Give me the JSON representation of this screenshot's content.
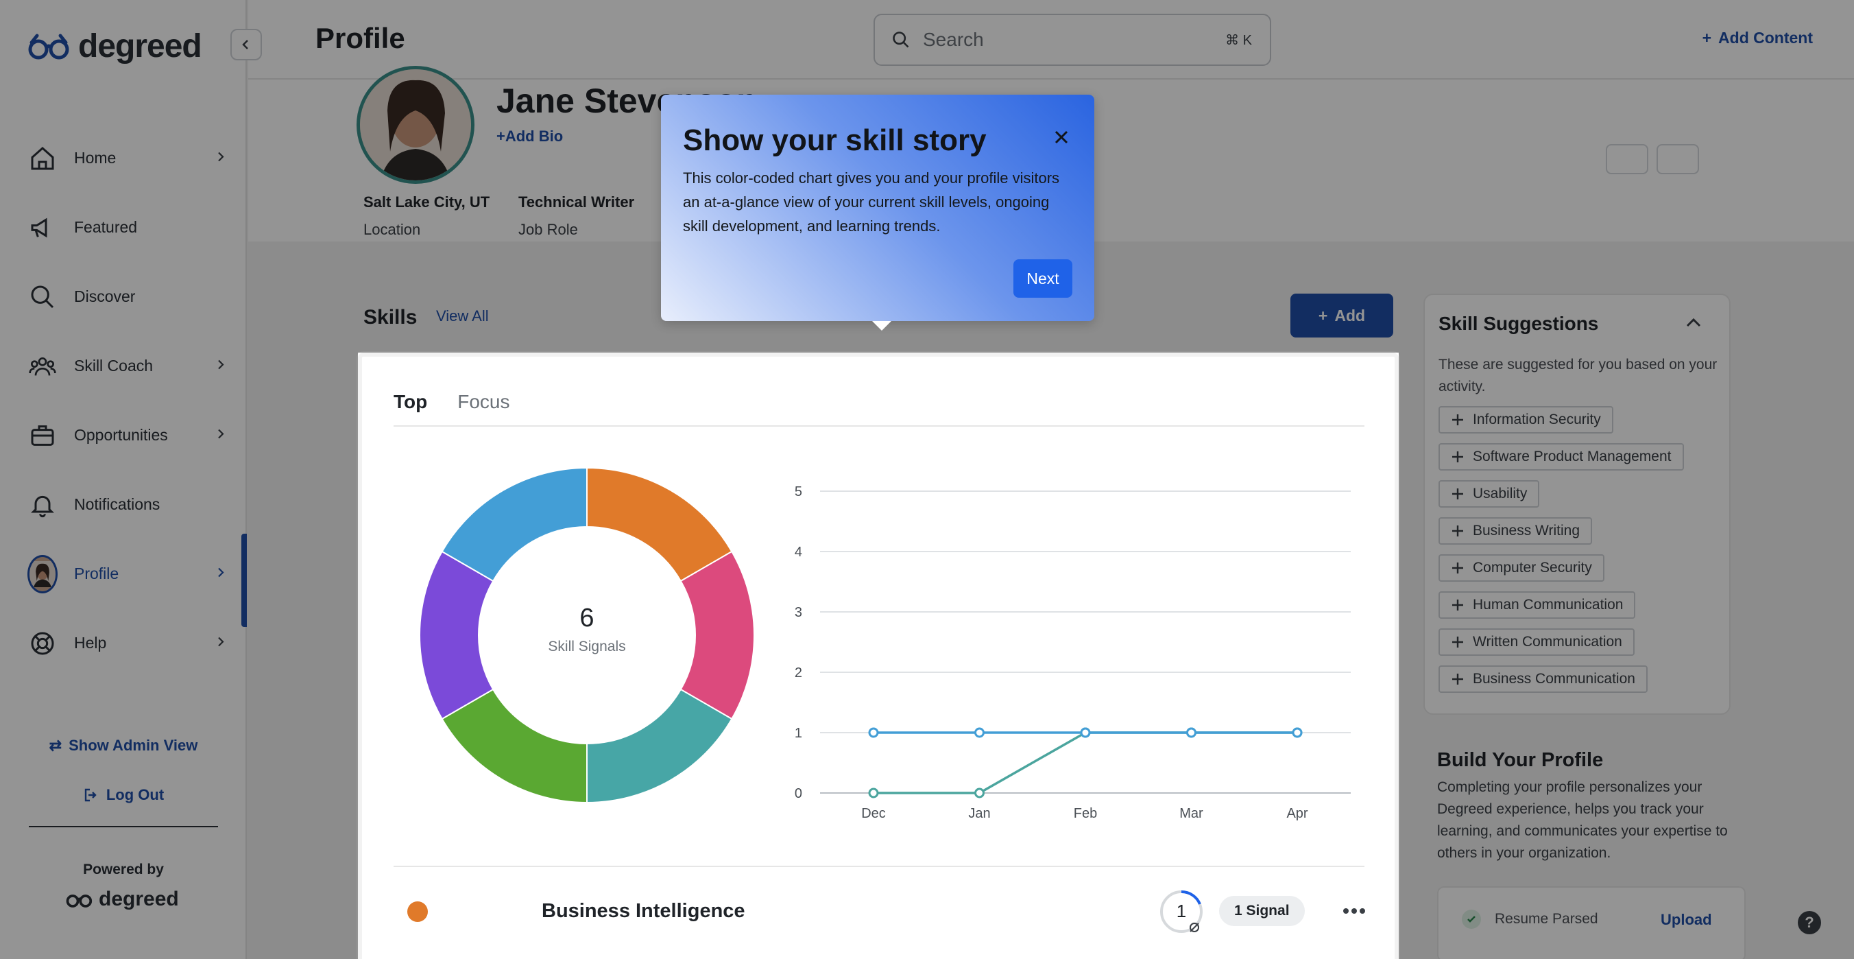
{
  "brand": {
    "name": "degreed",
    "powered_by": "Powered by"
  },
  "sidebar": {
    "items": [
      {
        "label": "Home",
        "icon": "home-icon",
        "chevron": true
      },
      {
        "label": "Featured",
        "icon": "megaphone-icon",
        "chevron": false
      },
      {
        "label": "Discover",
        "icon": "search-icon",
        "chevron": false
      },
      {
        "label": "Skill Coach",
        "icon": "people-icon",
        "chevron": true
      },
      {
        "label": "Opportunities",
        "icon": "briefcase-icon",
        "chevron": true
      },
      {
        "label": "Notifications",
        "icon": "bell-icon",
        "chevron": false
      },
      {
        "label": "Profile",
        "icon": "avatar",
        "chevron": true,
        "active": true
      },
      {
        "label": "Help",
        "icon": "lifebuoy-icon",
        "chevron": true
      }
    ],
    "show_admin_view": "Show Admin View",
    "log_out": "Log Out"
  },
  "header": {
    "title": "Profile",
    "search_placeholder": "Search",
    "search_shortcut": "⌘ K",
    "add_content": "Add Content"
  },
  "profile": {
    "name": "Jane Stevenson",
    "add_bio": "Add Bio",
    "meta": [
      {
        "value": "Salt Lake City, UT",
        "label": "Location"
      },
      {
        "value": "Technical Writer",
        "label": "Job Role"
      }
    ]
  },
  "skills": {
    "title": "Skills",
    "view_all": "View All",
    "add_label": "Add",
    "tabs": [
      "Top",
      "Focus"
    ],
    "active_tab": "Top",
    "donut_count": "6",
    "donut_label": "Skill Signals",
    "rows": [
      {
        "name": "Business Intelligence",
        "level": "1",
        "signals": "1 Signal",
        "color": "#e07a2a"
      }
    ]
  },
  "chart_data": [
    {
      "type": "pie",
      "title": "",
      "values": [
        1,
        1,
        1,
        1,
        1,
        1
      ],
      "colors": [
        "#e07a2a",
        "#dc4a7d",
        "#47a6a6",
        "#5aa832",
        "#7b4ad9",
        "#439ed6"
      ],
      "center_text": "6",
      "center_label": "Skill Signals"
    },
    {
      "type": "line",
      "title": "",
      "xlabel": "",
      "ylabel": "",
      "categories": [
        "Dec",
        "Jan",
        "Feb",
        "Mar",
        "Apr"
      ],
      "ylim": [
        0,
        5
      ],
      "yticks": [
        0,
        1,
        2,
        3,
        4,
        5
      ],
      "grid": true,
      "series": [
        {
          "values": [
            1,
            1,
            1,
            1,
            1
          ],
          "color": "#439ed6"
        },
        {
          "values": [
            0,
            0,
            1,
            1,
            1
          ],
          "color": "#4ba59e"
        }
      ]
    }
  ],
  "suggestions": {
    "title": "Skill Suggestions",
    "description": "These are suggested for you based on your activity.",
    "chips": [
      "Information Security",
      "Software Product Management",
      "Usability",
      "Business Writing",
      "Computer Security",
      "Human Communication",
      "Written Communication",
      "Business Communication"
    ]
  },
  "build_profile": {
    "title": "Build Your Profile",
    "description": "Completing your profile personalizes your Degreed experience, helps you track your learning, and communicates your expertise to others in your organization.",
    "resume_label": "Resume Parsed",
    "upload_label": "Upload"
  },
  "popover": {
    "title": "Show your skill story",
    "body": "This color-coded chart gives you and your profile visitors an at-a-glance view of your current skill levels, ongoing skill development, and learning trends.",
    "next_label": "Next"
  },
  "help_fab": "?"
}
